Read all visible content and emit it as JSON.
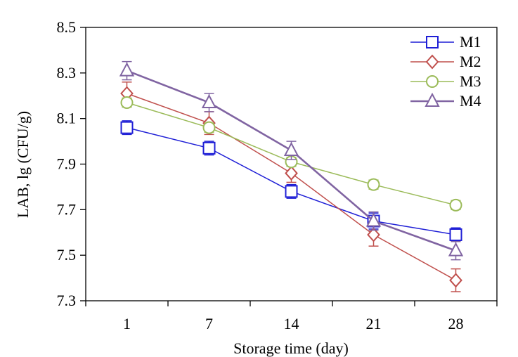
{
  "chart_data": {
    "type": "line",
    "title": "",
    "xlabel": "Storage time (day)",
    "ylabel": "LAB, lg (CFU/g)",
    "categories": [
      "1",
      "7",
      "14",
      "21",
      "28"
    ],
    "ylim": [
      7.3,
      8.5
    ],
    "yticks": [
      "7.3",
      "7.5",
      "7.7",
      "7.9",
      "8.1",
      "8.3",
      "8.5"
    ],
    "grid": false,
    "legend_position": "top-right",
    "series": [
      {
        "name": "M1",
        "color": "#1f1fd6",
        "marker": "square",
        "values": [
          8.06,
          7.97,
          7.78,
          7.65,
          7.59
        ],
        "errors": [
          0.03,
          0.03,
          0.03,
          0.035,
          0.03
        ]
      },
      {
        "name": "M2",
        "color": "#c0504d",
        "marker": "diamond",
        "values": [
          8.21,
          8.08,
          7.86,
          7.59,
          7.39
        ],
        "errors": [
          0.05,
          0.05,
          0.04,
          0.05,
          0.05
        ]
      },
      {
        "name": "M3",
        "color": "#9bbb59",
        "marker": "circle",
        "values": [
          8.17,
          8.06,
          7.91,
          7.81,
          7.72
        ],
        "errors": [
          0.02,
          0.02,
          0.02,
          0.02,
          0.02
        ]
      },
      {
        "name": "M4",
        "color": "#8064a2",
        "marker": "triangle",
        "values": [
          8.31,
          8.17,
          7.96,
          7.65,
          7.52
        ],
        "errors": [
          0.04,
          0.04,
          0.04,
          0.04,
          0.04
        ]
      }
    ]
  }
}
